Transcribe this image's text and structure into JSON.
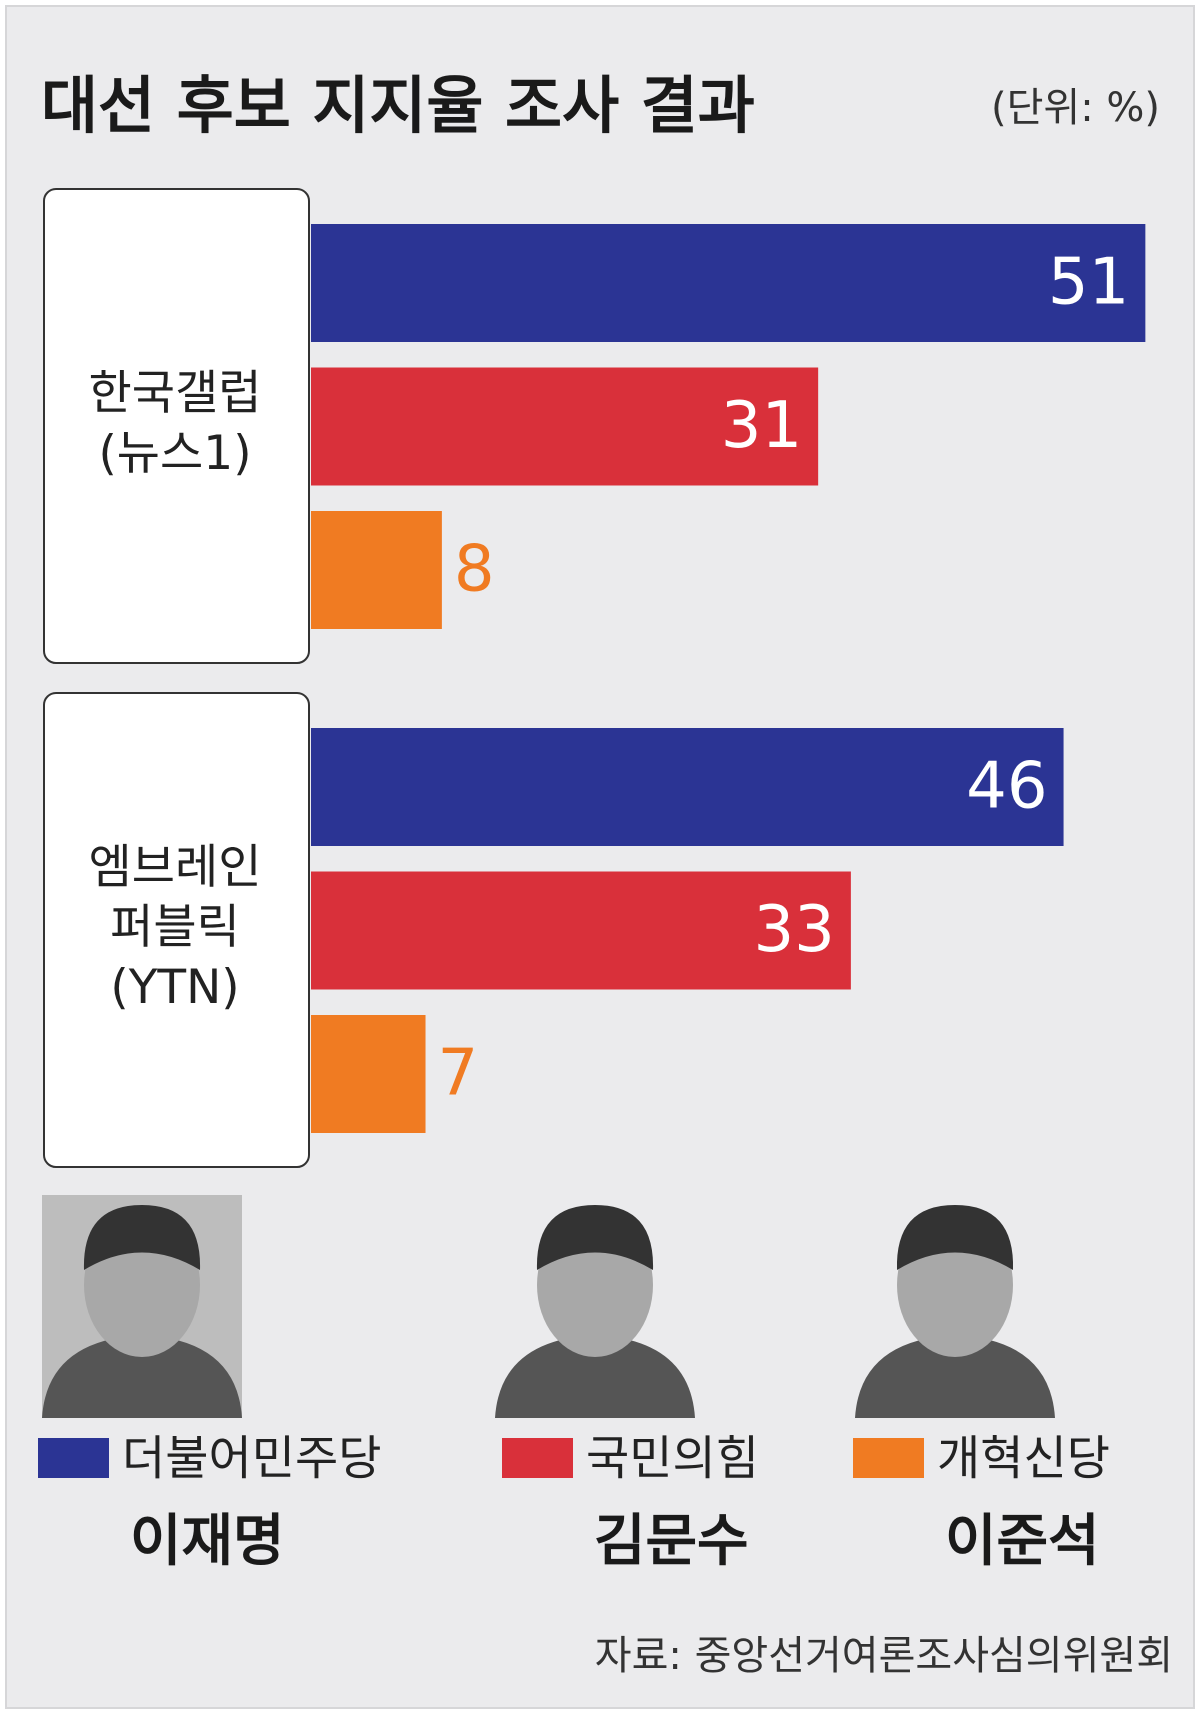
{
  "chart_data": {
    "type": "bar",
    "title": "대선 후보 지지율 조사 결과",
    "unit": "(단위: %)",
    "categories": [
      "한국갤럽 (뉴스1)",
      "엠브레인 퍼블릭 (YTN)"
    ],
    "series": [
      {
        "name": "더불어민주당",
        "candidate": "이재명",
        "color": "#2b3494",
        "values": [
          51,
          46
        ]
      },
      {
        "name": "국민의힘",
        "candidate": "김문수",
        "color": "#d9303a",
        "values": [
          31,
          33
        ]
      },
      {
        "name": "개혁신당",
        "candidate": "이준석",
        "color": "#f07b22",
        "values": [
          8,
          7
        ]
      }
    ],
    "source": "자료: 중앙선거여론조사심의위원회"
  }
}
